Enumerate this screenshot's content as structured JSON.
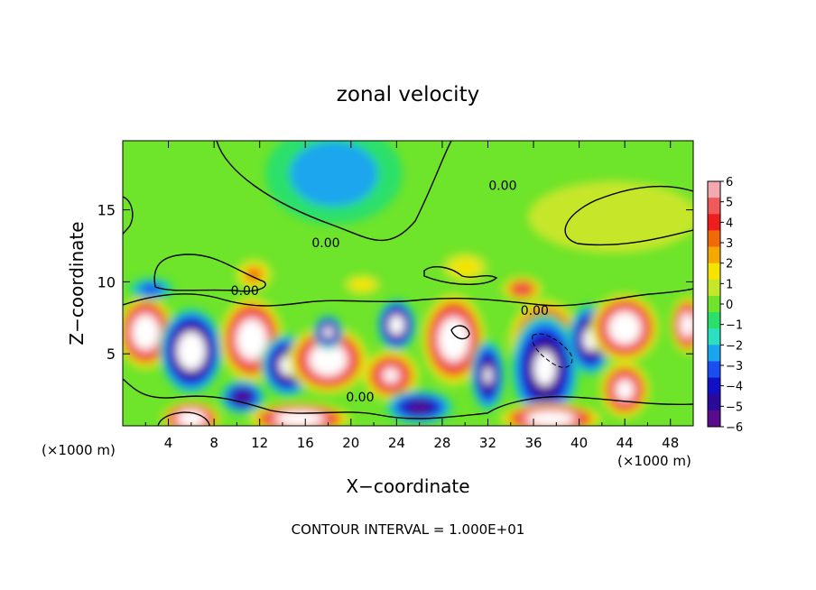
{
  "chart_data": {
    "type": "heatmap",
    "title": "zonal velocity",
    "xlabel": "X−coordinate",
    "ylabel": "Z−coordinate",
    "x_unit_left": "(×1000 m)",
    "x_unit_right": "(×1000 m)",
    "footer": "CONTOUR INTERVAL =  1.000E+01",
    "xlim": [
      0,
      50
    ],
    "ylim": [
      0,
      19.8
    ],
    "x_ticks": [
      4,
      8,
      12,
      16,
      20,
      24,
      28,
      32,
      36,
      40,
      44,
      48
    ],
    "y_ticks": [
      5,
      10,
      15
    ],
    "colorbar": {
      "min": -6,
      "max": 6,
      "ticks": [
        6,
        5,
        4,
        3,
        2,
        1,
        0,
        -1,
        -2,
        -3,
        -4,
        -5,
        -6
      ],
      "tick_labels": [
        "6",
        "5",
        "4",
        "3",
        "2",
        "1",
        "0",
        "−1",
        "−2",
        "−3",
        "−4",
        "−5",
        "−6"
      ],
      "colors": [
        "#f4a8b0",
        "#f05a5a",
        "#ee1e1e",
        "#f06a0a",
        "#f4a800",
        "#f4e400",
        "#c6e62a",
        "#6ee42a",
        "#2ae06a",
        "#2ae0c0",
        "#1aa6ee",
        "#1a4ef0",
        "#1010c8",
        "#2a0a9a",
        "#5a0a8a"
      ]
    },
    "contour_labels": [
      {
        "text": "0.00",
        "x": 17.8,
        "z": 12.4
      },
      {
        "text": "0.00",
        "x": 33.3,
        "z": 16.4
      },
      {
        "text": "0.00",
        "x": 10.7,
        "z": 9.1
      },
      {
        "text": "0.00",
        "x": 36.1,
        "z": 7.7
      },
      {
        "text": "0.00",
        "x": 20.8,
        "z": 1.7
      }
    ],
    "field_blobs": [
      {
        "x": 2.0,
        "z": 6.5,
        "rx": 2.5,
        "rz": 2.6,
        "v": 10
      },
      {
        "x": 6.0,
        "z": 5.2,
        "rx": 2.8,
        "rz": 3.0,
        "v": -10
      },
      {
        "x": 11.3,
        "z": 6.0,
        "rx": 2.8,
        "rz": 3.0,
        "v": 10
      },
      {
        "x": 14.5,
        "z": 4.2,
        "rx": 2.4,
        "rz": 2.2,
        "v": -8
      },
      {
        "x": 18.0,
        "z": 4.6,
        "rx": 3.5,
        "rz": 2.4,
        "v": 10
      },
      {
        "x": 18.0,
        "z": 6.5,
        "rx": 1.3,
        "rz": 1.2,
        "v": -8
      },
      {
        "x": 24.0,
        "z": 7.0,
        "rx": 1.7,
        "rz": 1.8,
        "v": -9
      },
      {
        "x": 23.5,
        "z": 3.5,
        "rx": 2.5,
        "rz": 1.8,
        "v": 7
      },
      {
        "x": 29.0,
        "z": 6.0,
        "rx": 2.8,
        "rz": 3.2,
        "v": 10
      },
      {
        "x": 32.0,
        "z": 3.5,
        "rx": 1.5,
        "rz": 2.5,
        "v": -7
      },
      {
        "x": 37.0,
        "z": 5.8,
        "rx": 3.2,
        "rz": 3.0,
        "v": 10
      },
      {
        "x": 37.0,
        "z": 4.0,
        "rx": 3.0,
        "rz": 3.8,
        "v": -8
      },
      {
        "x": 41.0,
        "z": 6.0,
        "rx": 2.0,
        "rz": 2.5,
        "v": -8
      },
      {
        "x": 44.0,
        "z": 6.8,
        "rx": 3.0,
        "rz": 2.4,
        "v": 10
      },
      {
        "x": 44.0,
        "z": 2.5,
        "rx": 2.2,
        "rz": 2.0,
        "v": 8
      },
      {
        "x": 49.5,
        "z": 7.0,
        "rx": 1.5,
        "rz": 2.0,
        "v": 9
      },
      {
        "x": 6.0,
        "z": 0.5,
        "rx": 2.6,
        "rz": 1.2,
        "v": 10
      },
      {
        "x": 15.5,
        "z": 0.5,
        "rx": 4.5,
        "rz": 1.1,
        "v": 10
      },
      {
        "x": 37.5,
        "z": 0.5,
        "rx": 4.5,
        "rz": 1.1,
        "v": 10
      },
      {
        "x": 26.0,
        "z": 1.3,
        "rx": 3.0,
        "rz": 1.2,
        "v": -6
      },
      {
        "x": 10.5,
        "z": 2.0,
        "rx": 2.0,
        "rz": 1.2,
        "v": -6
      },
      {
        "x": 11.5,
        "z": 10.5,
        "rx": 1.6,
        "rz": 1.1,
        "v": 3
      },
      {
        "x": 21.0,
        "z": 9.8,
        "rx": 1.6,
        "rz": 0.7,
        "v": 2
      },
      {
        "x": 35.0,
        "z": 9.5,
        "rx": 1.8,
        "rz": 0.9,
        "v": 5
      },
      {
        "x": 30.0,
        "z": 11.0,
        "rx": 2.0,
        "rz": 1.0,
        "v": 2
      },
      {
        "x": 2.5,
        "z": 9.5,
        "rx": 2.0,
        "rz": 0.8,
        "v": -3
      },
      {
        "x": 18.5,
        "z": 17.5,
        "rx": 6.0,
        "rz": 3.5,
        "v": -2
      },
      {
        "x": 43.0,
        "z": 14.5,
        "rx": 7.5,
        "rz": 2.5,
        "v": 0.5
      }
    ]
  }
}
